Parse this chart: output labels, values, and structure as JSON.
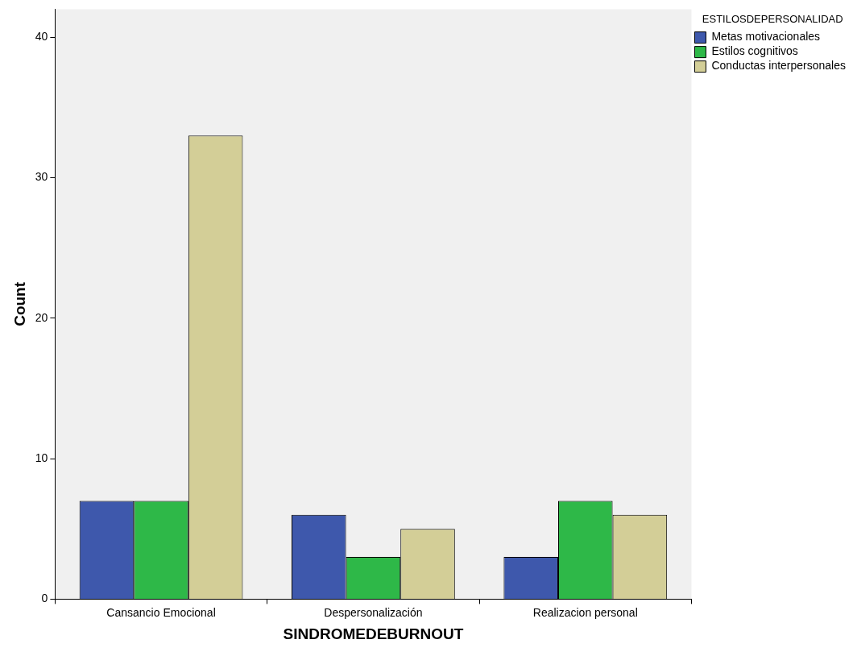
{
  "chart_data": {
    "type": "bar",
    "xlabel": "SINDROMEDEBURNOUT",
    "ylabel": "Count",
    "legend_title": "ESTILOSDEPERSONALIDAD",
    "categories": [
      "Cansancio Emocional",
      "Despersonalización",
      "Realizacion personal"
    ],
    "series": [
      {
        "name": "Metas motivacionales",
        "color": "#3e58ac",
        "values": [
          7,
          6,
          3
        ]
      },
      {
        "name": "Estilos cognitivos",
        "color": "#2eb848",
        "values": [
          7,
          3,
          7
        ]
      },
      {
        "name": "Conductas interpersonales",
        "color": "#d3ce97",
        "values": [
          33,
          5,
          6
        ]
      }
    ],
    "ylim": [
      0,
      42
    ],
    "yticks": [
      0,
      10,
      20,
      30,
      40
    ],
    "grid": false,
    "legend": "top right"
  }
}
